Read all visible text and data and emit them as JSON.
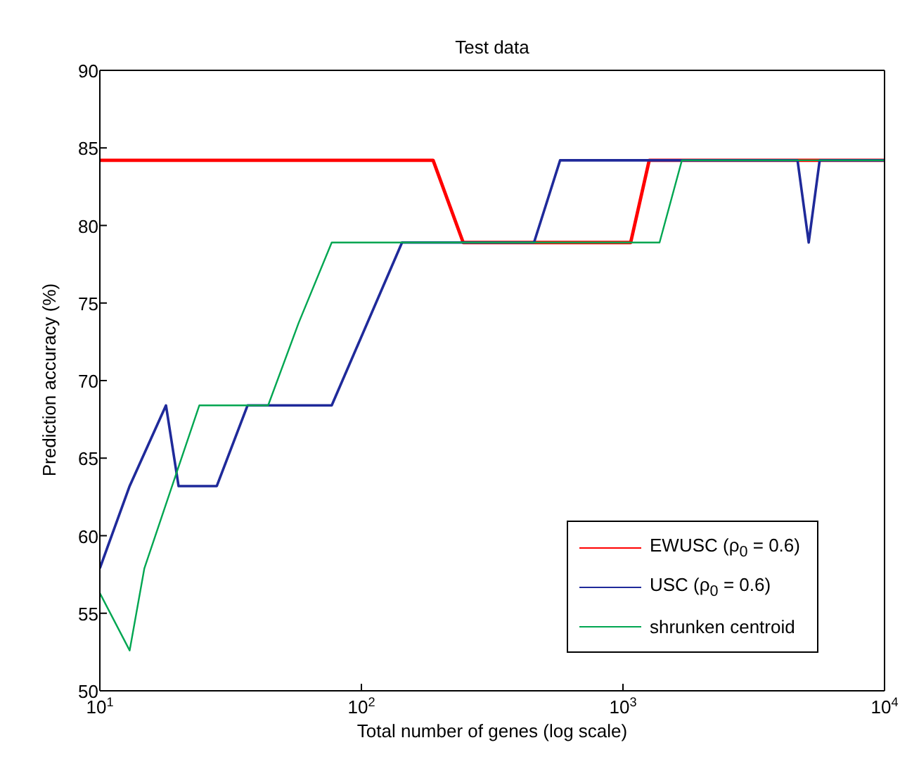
{
  "chart_data": {
    "type": "line",
    "title": "Test data",
    "xlabel": "Total number of genes (log scale)",
    "ylabel": "Prediction accuracy (%)",
    "log": "x",
    "xlim": [
      10,
      10000
    ],
    "xticks": [
      {
        "value": 10,
        "label": "10$^{1}$"
      },
      {
        "value": 100,
        "label": "10$^{2}$"
      },
      {
        "value": 1000,
        "label": "10$^{3}$"
      },
      {
        "value": 10000,
        "label": "10$^{4}$"
      }
    ],
    "ylim": [
      50,
      90
    ],
    "yticks": [
      50,
      55,
      60,
      65,
      70,
      75,
      80,
      85,
      90
    ],
    "grid": false,
    "legend": "bottom right",
    "marker": "none",
    "line_style": "solid",
    "series": [
      {
        "name": "EWUSC (ρ$_{0}$ = 0.6)",
        "color": "#ff0000",
        "x": [
          10,
          188,
          245,
          1070,
          1260,
          10000
        ],
        "values": [
          84.2,
          84.2,
          78.9,
          78.9,
          84.2,
          84.2
        ]
      },
      {
        "name": "USC (ρ$_{0}$ = 0.6)",
        "color": "#1f2a9a",
        "x": [
          10,
          13,
          17.9,
          20,
          28,
          36.7,
          77,
          143,
          457,
          575,
          4650,
          5130,
          5650,
          10000
        ],
        "values": [
          57.9,
          63.2,
          68.4,
          63.2,
          63.2,
          68.4,
          68.4,
          78.9,
          78.9,
          84.2,
          84.2,
          78.9,
          84.2,
          84.2
        ]
      },
      {
        "name": "shrunken centroid",
        "color": "#00a651",
        "x": [
          10,
          13,
          14.8,
          24,
          44,
          57.5,
          77,
          1380,
          1680,
          10000
        ],
        "values": [
          56.3,
          52.6,
          57.9,
          68.4,
          68.4,
          73.7,
          78.9,
          78.9,
          84.2,
          84.2
        ]
      }
    ]
  }
}
